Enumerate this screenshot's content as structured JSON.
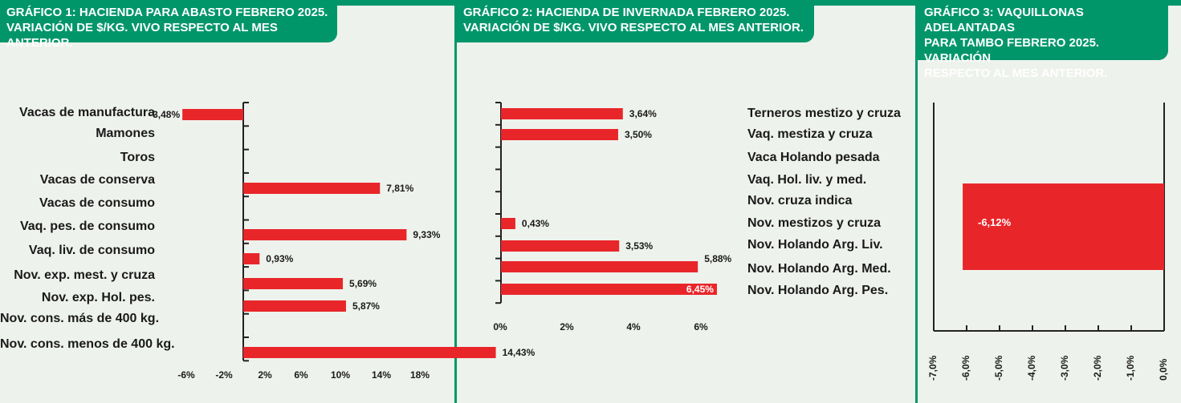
{
  "colors": {
    "green": "#00966a",
    "bar": "#e8262a",
    "panel": "#eef2ec"
  },
  "chart_data": [
    {
      "type": "bar",
      "orientation": "horizontal",
      "title": "GRÁFICO 1: HACIENDA PARA ABASTO FEBRERO 2025.\nVARIACIÓN DE $/KG. VIVO RESPECTO AL MES ANTERIOR.",
      "categories": [
        "Vacas de manufactura",
        "Mamones",
        "Toros",
        "Vacas de conserva",
        "Vacas de consumo",
        "Vaq. pes. de consumo",
        "Vaq. liv. de consumo",
        "Nov. exp. mest. y cruza",
        "Nov. exp. Hol. pes.",
        "Nov. cons. más de 400 kg.",
        "Nov. cons. menos de 400 kg."
      ],
      "values": [
        -3.48,
        null,
        null,
        7.81,
        null,
        9.33,
        0.93,
        5.69,
        5.87,
        null,
        14.43
      ],
      "value_labels": [
        "-3,48%",
        "",
        "",
        "7,81%",
        "",
        "9,33%",
        "0,93%",
        "5,69%",
        "5,87%",
        "",
        "14,43%"
      ],
      "xticks": [
        "-6%",
        "-2%",
        "2%",
        "6%",
        "10%",
        "14%",
        "18%"
      ],
      "xlim": [
        -6,
        18
      ]
    },
    {
      "type": "bar",
      "orientation": "horizontal",
      "title": "GRÁFICO 2: HACIENDA DE INVERNADA FEBRERO 2025.\nVARIACIÓN DE $/KG. VIVO RESPECTO AL MES ANTERIOR.",
      "categories": [
        "Terneros mestizo y cruza",
        "Vaq. mestiza y cruza",
        "Vaca Holando pesada",
        "Vaq. Hol. liv. y med.",
        "Nov. cruza indica",
        "Nov. mestizos y cruza",
        "Nov. Holando Arg. Liv.",
        "Nov. Holando Arg. Med.",
        "Nov. Holando Arg. Pes."
      ],
      "values": [
        3.64,
        3.5,
        null,
        null,
        null,
        0.43,
        3.53,
        5.88,
        6.45
      ],
      "value_labels": [
        "3,64%",
        "3,50%",
        "",
        "",
        "",
        "0,43%",
        "3,53%",
        "5,88%",
        "6,45%"
      ],
      "xticks": [
        "0%",
        "2%",
        "4%",
        "6%"
      ],
      "xlim": [
        0,
        6.8
      ]
    },
    {
      "type": "bar",
      "orientation": "horizontal",
      "title": "GRÁFICO 3: VAQUILLONAS ADELANTADAS\nPARA TAMBO FEBRERO 2025. VARIACIÓN\nRESPECTO AL MES ANTERIOR.",
      "categories": [
        ""
      ],
      "values": [
        -6.12
      ],
      "value_labels": [
        "-6,12%"
      ],
      "xticks": [
        "-7,0%",
        "-6,0%",
        "-5,0%",
        "-4,0%",
        "-3,0%",
        "-2,0%",
        "-1,0%",
        "0,0%"
      ],
      "xlim": [
        -7,
        0
      ]
    }
  ]
}
